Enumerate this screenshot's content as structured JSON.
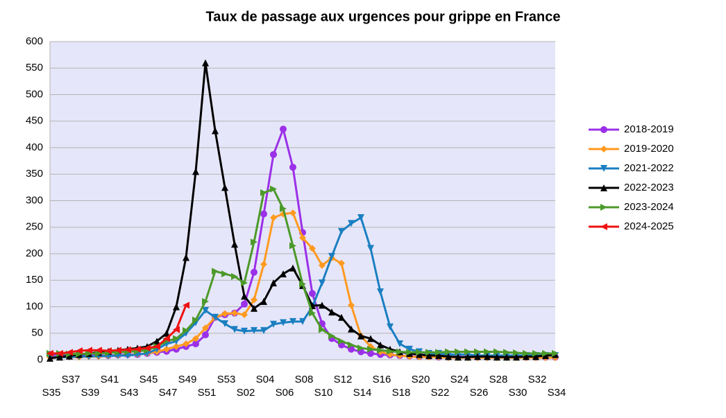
{
  "chart_data": {
    "type": "line",
    "title": "Taux de passage aux urgences pour grippe en France",
    "categories": [
      "S35",
      null,
      "S37",
      null,
      "S39",
      null,
      "S41",
      null,
      "S43",
      null,
      "S45",
      null,
      "S47",
      null,
      "S49",
      null,
      "S51",
      null,
      "S53",
      null,
      "S02",
      null,
      "S04",
      null,
      "S06",
      null,
      "S08",
      null,
      "S10",
      null,
      "S12",
      null,
      "S14",
      null,
      "S16",
      null,
      "S18",
      null,
      "S20",
      null,
      "S22",
      null,
      "S24",
      null,
      "S26",
      null,
      "S28",
      null,
      "S30",
      null,
      "S32",
      null,
      "S34"
    ],
    "series": [
      {
        "name": "2018-2019",
        "color": "#9b30e8",
        "marker": "circle",
        "values": [
          10,
          9,
          8,
          8,
          8,
          8,
          8,
          9,
          10,
          10,
          12,
          14,
          16,
          20,
          25,
          30,
          47,
          80,
          85,
          88,
          105,
          165,
          275,
          387,
          435,
          363,
          240,
          125,
          68,
          40,
          28,
          20,
          15,
          12,
          10,
          9,
          8,
          7,
          6,
          6,
          5,
          5,
          5,
          5,
          5,
          5,
          5,
          5,
          5,
          5,
          5,
          5,
          5
        ]
      },
      {
        "name": "2019-2020",
        "color": "#ff9a1f",
        "marker": "diamond",
        "values": [
          5,
          5,
          5,
          5,
          6,
          6,
          7,
          8,
          9,
          10,
          12,
          15,
          20,
          25,
          30,
          40,
          60,
          80,
          87,
          88,
          85,
          113,
          180,
          268,
          275,
          277,
          230,
          210,
          178,
          192,
          182,
          103,
          45,
          25,
          15,
          10,
          8,
          6,
          5,
          5,
          5,
          4,
          4,
          4,
          4,
          4,
          4,
          4,
          4,
          4,
          4,
          4,
          4
        ]
      },
      {
        "name": "2021-2022",
        "color": "#1a7fc1",
        "marker": "triangle-down",
        "values": [
          5,
          5,
          5,
          6,
          6,
          7,
          7,
          8,
          8,
          10,
          12,
          20,
          30,
          35,
          50,
          70,
          93,
          80,
          68,
          57,
          54,
          55,
          55,
          67,
          70,
          72,
          72,
          100,
          145,
          195,
          242,
          257,
          268,
          210,
          128,
          62,
          30,
          20,
          15,
          12,
          12,
          10,
          10,
          10,
          8,
          8,
          8,
          8,
          8,
          8,
          8,
          8,
          8
        ]
      },
      {
        "name": "2022-2023",
        "color": "#000000",
        "marker": "triangle-up",
        "values": [
          3,
          5,
          7,
          10,
          12,
          14,
          16,
          18,
          20,
          22,
          25,
          35,
          50,
          100,
          193,
          355,
          560,
          432,
          325,
          218,
          120,
          97,
          110,
          145,
          162,
          173,
          140,
          102,
          103,
          90,
          80,
          58,
          45,
          40,
          28,
          20,
          15,
          12,
          10,
          8,
          8,
          6,
          5,
          5,
          6,
          6,
          5,
          5,
          5,
          6,
          6,
          8,
          10
        ]
      },
      {
        "name": "2023-2024",
        "color": "#4c9a2a",
        "marker": "triangle-right",
        "values": [
          12,
          12,
          11,
          11,
          12,
          12,
          13,
          14,
          15,
          16,
          18,
          25,
          35,
          40,
          55,
          75,
          110,
          167,
          162,
          157,
          145,
          222,
          315,
          322,
          285,
          215,
          143,
          88,
          57,
          45,
          35,
          28,
          22,
          20,
          18,
          16,
          15,
          14,
          14,
          14,
          14,
          15,
          15,
          15,
          15,
          15,
          15,
          14,
          13,
          12,
          12,
          12,
          12
        ]
      },
      {
        "name": "2024-2025",
        "color": "#ee1111",
        "marker": "triangle-left",
        "values": [
          12,
          12,
          14,
          17,
          18,
          18,
          17,
          18,
          19,
          20,
          22,
          25,
          40,
          57,
          103,
          null,
          null,
          null,
          null,
          null,
          null,
          null,
          null,
          null,
          null,
          null,
          null,
          null,
          null,
          null,
          null,
          null,
          null,
          null,
          null,
          null,
          null,
          null,
          null,
          null,
          null,
          null,
          null,
          null,
          null,
          null,
          null,
          null,
          null,
          null,
          null,
          null,
          null
        ]
      }
    ],
    "ylim": [
      0,
      600
    ],
    "yticks": [
      0,
      50,
      100,
      150,
      200,
      250,
      300,
      350,
      400,
      450,
      500,
      550,
      600
    ],
    "grid": true,
    "legend": "right"
  }
}
